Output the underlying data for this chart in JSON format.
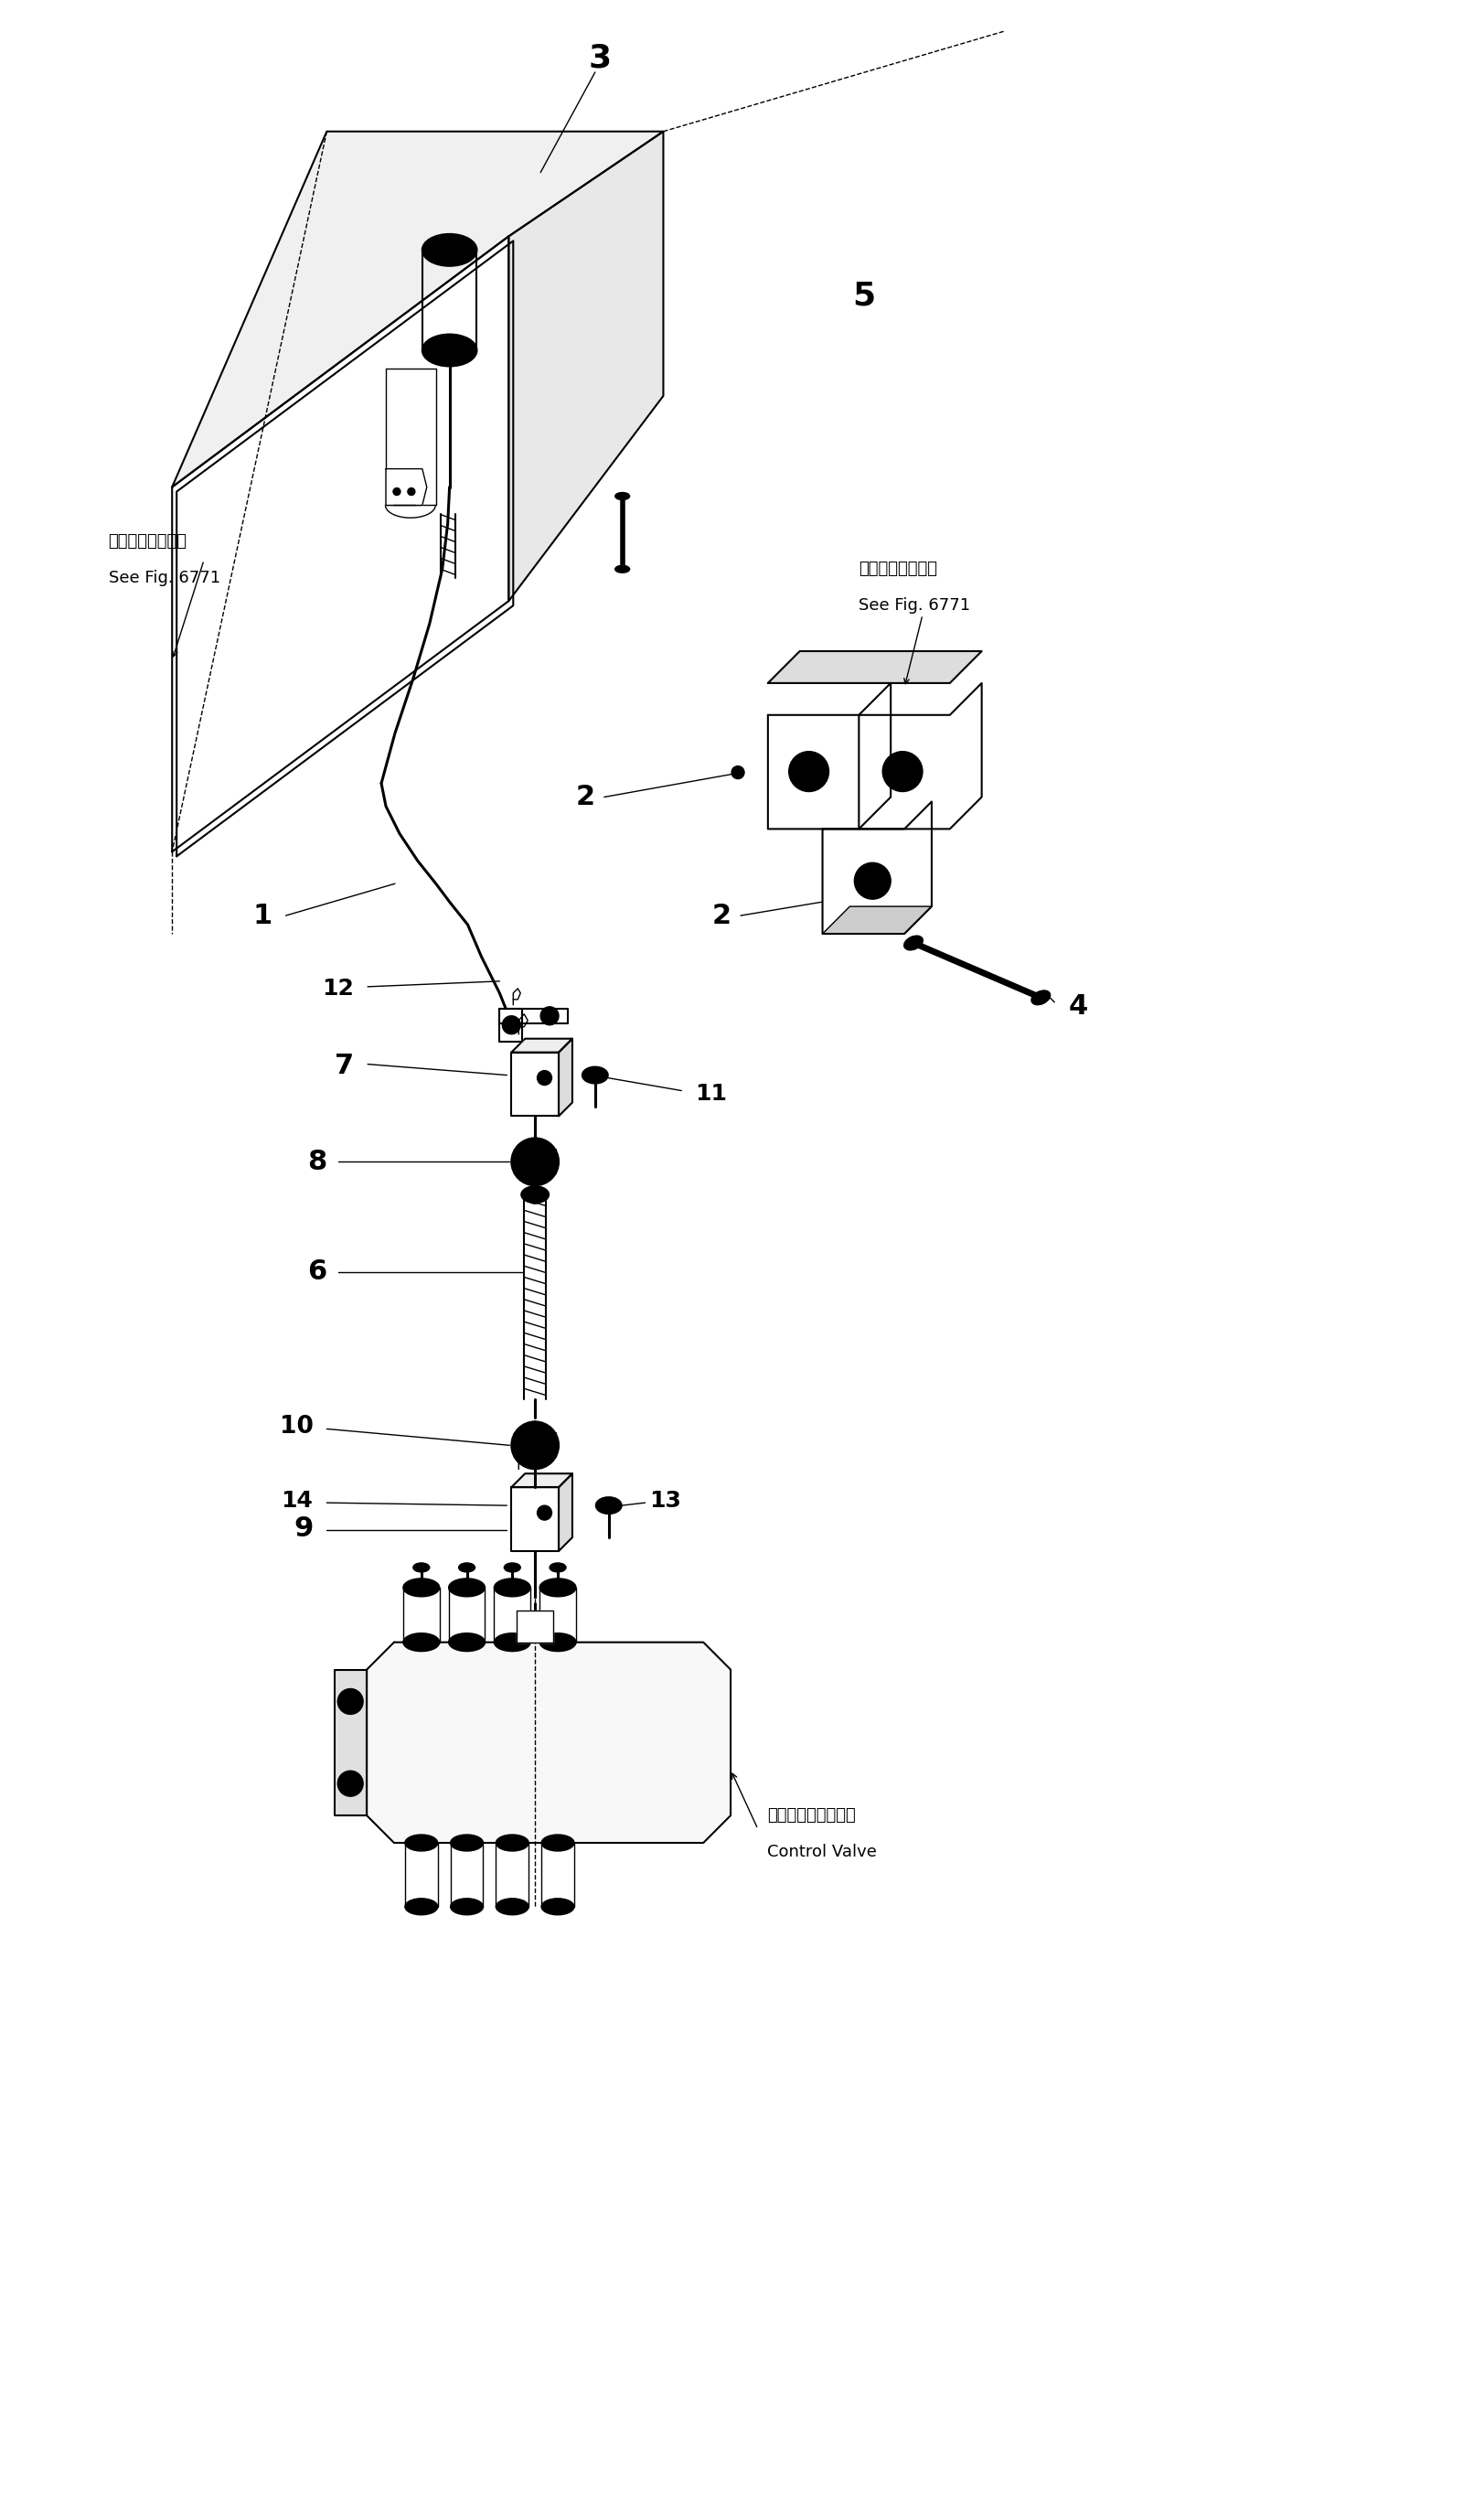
{
  "bg_color": "#ffffff",
  "line_color": "#000000",
  "fig_width": 16.24,
  "fig_height": 27.27,
  "see_fig_left_jp": "第６７７１図参照",
  "see_fig_left_en": "See Fig. 6771",
  "see_fig_right_jp": "第６７７１図参照",
  "see_fig_right_en": "See Fig. 6771",
  "control_valve_jp": "コントロールバルブ",
  "control_valve_en": "Control Valve"
}
